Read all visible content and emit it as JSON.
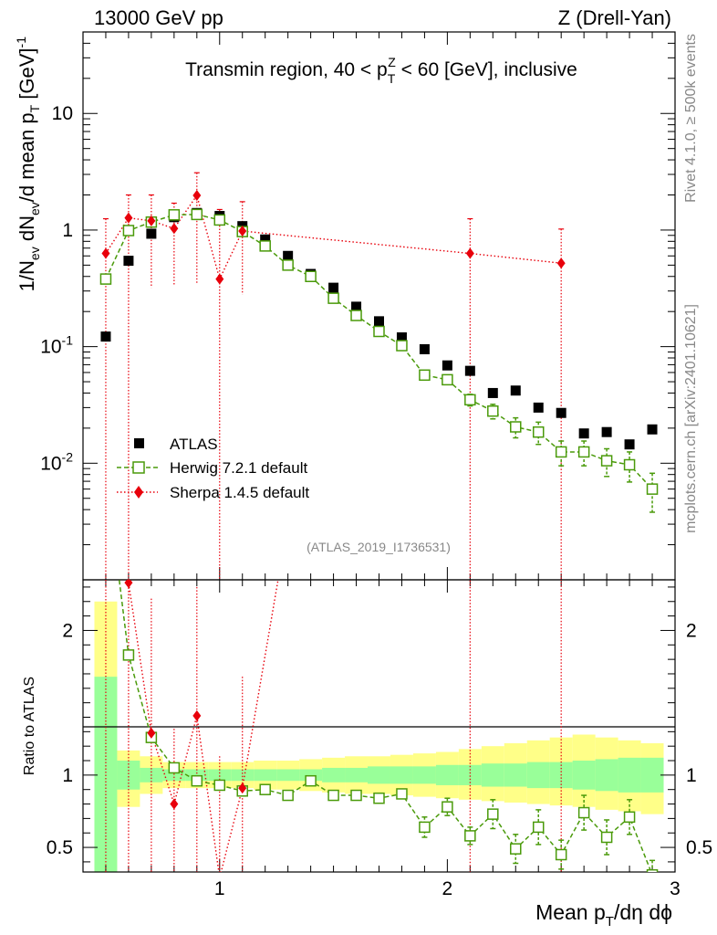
{
  "header": {
    "left": "13000 GeV pp",
    "right": "Z (Drell-Yan)"
  },
  "side_text": {
    "rivet": "Rivet 4.1.0, ≥ 500k events",
    "mcplots": "mcplots.cern.ch [arXiv:2401.10621]"
  },
  "watermark": "(ATLAS_2019_I1736531)",
  "colors": {
    "atlas": "#000000",
    "herwig": "#4a9a0a",
    "sherpa": "#e8000b",
    "band_inner": "#99ff99",
    "band_outer": "#ffff88"
  },
  "chart_data": {
    "type": "scatter",
    "title": "Transmin region, 40 < pT^Z < 60 [GeV], inclusive",
    "title_parts": {
      "pre": "Transmin region, 40 < p",
      "sup": "Z",
      "sub": "T",
      "post": " < 60 [GeV], inclusive"
    },
    "xlabel": "Mean p_T/dη dϕ",
    "xlabel_parts": {
      "a": "Mean p",
      "sub": "T",
      "b": "/dη dϕ"
    },
    "ylabel": "1/N_ev dN_ev/d mean p_T [GeV]^-1",
    "ylabel_parts": {
      "a": "1/N",
      "s1": "ev",
      "b": " dN",
      "s2": "ev",
      "c": "/d mean p",
      "s3": "T",
      "d": " [GeV]",
      "sup": "-1"
    },
    "ratio_ylabel": "Ratio to ATLAS",
    "xlim": [
      0.4,
      3.0
    ],
    "ylim": [
      0.001,
      50
    ],
    "yscale": "log",
    "x_ticks": [
      "1",
      "2",
      "3"
    ],
    "x_tick_values": [
      1,
      2,
      3
    ],
    "y_ticks": [
      {
        "value": 0.01,
        "base": "10",
        "exp": "-2"
      },
      {
        "value": 0.1,
        "base": "10",
        "exp": "-1"
      },
      {
        "value": 1,
        "base": "1",
        "exp": ""
      },
      {
        "value": 10,
        "base": "10",
        "exp": ""
      }
    ],
    "ratio_ylim": [
      0.33,
      2.35
    ],
    "ratio_ticks": [
      "0.5",
      "1",
      "2"
    ],
    "ratio_tick_values": [
      0.5,
      1,
      2
    ],
    "legend": [
      "ATLAS",
      "Herwig 7.2.1 default",
      "Sherpa 1.4.5 default"
    ],
    "legend_position": "lower-left",
    "series": [
      {
        "name": "ATLAS",
        "marker": "filled-square",
        "x": [
          0.5,
          0.6,
          0.7,
          0.8,
          0.9,
          1.0,
          1.1,
          1.2,
          1.3,
          1.4,
          1.5,
          1.6,
          1.7,
          1.8,
          1.9,
          2.0,
          2.1,
          2.2,
          2.3,
          2.4,
          2.5,
          2.6,
          2.7,
          2.8,
          2.9
        ],
        "y": [
          0.122,
          0.545,
          0.93,
          1.29,
          1.4,
          1.32,
          1.08,
          0.83,
          0.6,
          0.42,
          0.32,
          0.22,
          0.165,
          0.12,
          0.095,
          0.069,
          0.062,
          0.04,
          0.042,
          0.03,
          0.027,
          0.018,
          0.0185,
          0.0145,
          0.0195
        ]
      },
      {
        "name": "Herwig 7.2.1 default",
        "marker": "open-square",
        "x": [
          0.5,
          0.6,
          0.7,
          0.8,
          0.9,
          1.0,
          1.1,
          1.2,
          1.3,
          1.4,
          1.5,
          1.6,
          1.7,
          1.8,
          1.9,
          2.0,
          2.1,
          2.2,
          2.3,
          2.4,
          2.5,
          2.6,
          2.7,
          2.8,
          2.9
        ],
        "y": [
          0.38,
          0.99,
          1.17,
          1.35,
          1.36,
          1.22,
          0.97,
          0.73,
          0.5,
          0.4,
          0.26,
          0.185,
          0.135,
          0.102,
          0.057,
          0.052,
          0.035,
          0.028,
          0.0205,
          0.0185,
          0.0125,
          0.0125,
          0.0105,
          0.0097,
          0.006
        ],
        "err_low": [
          0.02,
          0.03,
          0.03,
          0.03,
          0.03,
          0.03,
          0.02,
          0.02,
          0.015,
          0.012,
          0.01,
          0.008,
          0.006,
          0.005,
          0.004,
          0.004,
          0.004,
          0.004,
          0.004,
          0.004,
          0.003,
          0.003,
          0.0028,
          0.0028,
          0.0022
        ],
        "err_high": [
          0.02,
          0.03,
          0.03,
          0.03,
          0.03,
          0.03,
          0.02,
          0.02,
          0.015,
          0.012,
          0.01,
          0.008,
          0.006,
          0.005,
          0.004,
          0.004,
          0.004,
          0.004,
          0.004,
          0.004,
          0.003,
          0.003,
          0.0028,
          0.0028,
          0.0022
        ],
        "ratio": [
          3.1,
          1.83,
          1.26,
          1.05,
          0.96,
          0.93,
          0.89,
          0.9,
          0.86,
          0.96,
          0.86,
          0.86,
          0.84,
          0.87,
          0.64,
          0.78,
          0.58,
          0.73,
          0.49,
          0.64,
          0.45,
          0.74,
          0.57,
          0.71,
          0.31
        ],
        "ratio_err": [
          0.05,
          0.03,
          0.02,
          0.02,
          0.01,
          0.01,
          0.01,
          0.01,
          0.01,
          0.01,
          0.02,
          0.02,
          0.03,
          0.03,
          0.07,
          0.06,
          0.06,
          0.1,
          0.1,
          0.12,
          0.1,
          0.12,
          0.12,
          0.12,
          0.1
        ]
      },
      {
        "name": "Sherpa 1.4.5 default",
        "marker": "filled-diamond",
        "x": [
          0.5,
          0.6,
          0.7,
          0.8,
          0.9,
          1.0,
          1.1,
          2.1,
          2.5
        ],
        "y": [
          0.63,
          1.27,
          1.2,
          1.03,
          1.98,
          0.38,
          0.98,
          0.63,
          0.52
        ],
        "err_low_to": [
          0.001,
          0.001,
          0.32,
          0.33,
          0.34,
          0.001,
          0.28,
          0.001,
          0.001
        ],
        "err_high_to": [
          1.25,
          2.0,
          2.0,
          1.7,
          3.1,
          1.5,
          1.75,
          1.25,
          1.02
        ],
        "ratio": [
          5.2,
          2.33,
          1.29,
          0.8,
          1.41,
          0.29,
          0.91,
          10.1,
          19.3
        ],
        "ratio_err_low_to": [
          0.001,
          0.001,
          0.33,
          0.33,
          0.33,
          0.001,
          0.33,
          0.001,
          0.001
        ],
        "ratio_err_high_to": [
          5.2,
          3.6,
          2.22,
          1.32,
          2.3,
          1.13,
          1.68,
          10.1,
          19.3
        ]
      }
    ],
    "bands": {
      "x_edges": [
        0.45,
        0.55,
        0.65,
        0.75,
        0.85,
        0.95,
        1.05,
        1.15,
        1.25,
        1.35,
        1.45,
        1.55,
        1.65,
        1.75,
        1.85,
        1.95,
        2.05,
        2.15,
        2.25,
        2.35,
        2.45,
        2.55,
        2.65,
        2.75,
        2.85,
        2.95
      ],
      "inner_lo": [
        0.33,
        0.9,
        0.95,
        0.96,
        0.96,
        0.96,
        0.96,
        0.96,
        0.96,
        0.96,
        0.95,
        0.95,
        0.94,
        0.94,
        0.94,
        0.93,
        0.93,
        0.92,
        0.92,
        0.91,
        0.91,
        0.9,
        0.89,
        0.88,
        0.88
      ],
      "inner_hi": [
        1.68,
        1.1,
        1.05,
        1.04,
        1.04,
        1.04,
        1.04,
        1.04,
        1.04,
        1.04,
        1.05,
        1.05,
        1.06,
        1.06,
        1.06,
        1.07,
        1.07,
        1.08,
        1.08,
        1.09,
        1.09,
        1.1,
        1.11,
        1.12,
        1.12
      ],
      "outer_lo": [
        0.33,
        0.78,
        0.87,
        0.91,
        0.91,
        0.91,
        0.91,
        0.9,
        0.9,
        0.89,
        0.88,
        0.87,
        0.87,
        0.86,
        0.85,
        0.84,
        0.83,
        0.82,
        0.81,
        0.8,
        0.79,
        0.78,
        0.76,
        0.75,
        0.73
      ],
      "outer_hi": [
        2.2,
        1.17,
        1.13,
        1.09,
        1.09,
        1.09,
        1.09,
        1.1,
        1.1,
        1.11,
        1.12,
        1.13,
        1.13,
        1.14,
        1.15,
        1.16,
        1.18,
        1.2,
        1.22,
        1.24,
        1.26,
        1.28,
        1.26,
        1.24,
        1.22
      ]
    }
  }
}
